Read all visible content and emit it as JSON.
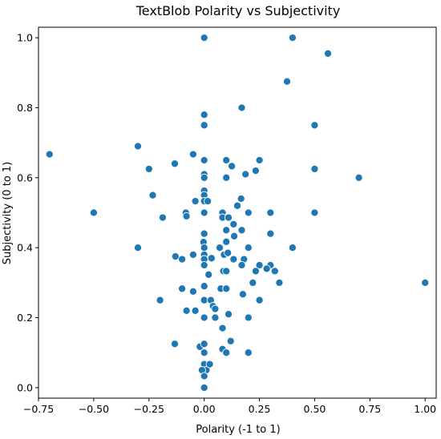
{
  "chart_data": {
    "type": "scatter",
    "title": "TextBlob Polarity vs Subjectivity",
    "xlabel": "Polarity (-1 to 1)",
    "ylabel": "Subjectivity (0 to 1)",
    "xlim": [
      -0.75,
      1.05
    ],
    "ylim": [
      -0.03,
      1.03
    ],
    "xticks": [
      -0.75,
      -0.5,
      -0.25,
      0.0,
      0.25,
      0.5,
      0.75,
      1.0
    ],
    "xtick_labels": [
      "−0.75",
      "−0.50",
      "−0.25",
      "0.00",
      "0.25",
      "0.50",
      "0.75",
      "1.00"
    ],
    "yticks": [
      0.0,
      0.2,
      0.4,
      0.6,
      0.8,
      1.0
    ],
    "ytick_labels": [
      "0.0",
      "0.2",
      "0.4",
      "0.6",
      "0.8",
      "1.0"
    ],
    "grid": false,
    "marker_color": "#1f77b4",
    "marker_edge_color": "#ffffff",
    "points": [
      [
        0.0,
        1.0
      ],
      [
        0.4,
        1.0
      ],
      [
        0.56,
        0.955
      ],
      [
        0.375,
        0.875
      ],
      [
        0.0,
        0.78
      ],
      [
        0.17,
        0.8
      ],
      [
        0.0,
        0.75
      ],
      [
        0.5,
        0.75
      ],
      [
        -0.7,
        0.667
      ],
      [
        -0.3,
        0.69
      ],
      [
        -0.25,
        0.625
      ],
      [
        -0.05,
        0.667
      ],
      [
        0.0,
        0.65
      ],
      [
        0.1,
        0.65
      ],
      [
        0.25,
        0.65
      ],
      [
        -0.133,
        0.64
      ],
      [
        0.125,
        0.633
      ],
      [
        0.0,
        0.61
      ],
      [
        0.187,
        0.61
      ],
      [
        0.233,
        0.62
      ],
      [
        0.5,
        0.625
      ],
      [
        0.7,
        0.6
      ],
      [
        0.1,
        0.6
      ],
      [
        0.0,
        0.6
      ],
      [
        -0.233,
        0.55
      ],
      [
        0.0,
        0.563
      ],
      [
        0.0,
        0.55
      ],
      [
        -0.04,
        0.533
      ],
      [
        0.0,
        0.533
      ],
      [
        0.016,
        0.533
      ],
      [
        0.167,
        0.54
      ],
      [
        0.15,
        0.52
      ],
      [
        -0.5,
        0.5
      ],
      [
        -0.083,
        0.5
      ],
      [
        -0.08,
        0.49
      ],
      [
        0.0,
        0.5
      ],
      [
        0.083,
        0.5
      ],
      [
        0.2,
        0.5
      ],
      [
        0.3,
        0.5
      ],
      [
        0.5,
        0.5
      ],
      [
        -0.188,
        0.486
      ],
      [
        0.083,
        0.486
      ],
      [
        0.11,
        0.486
      ],
      [
        0.133,
        0.467
      ],
      [
        0.1,
        0.45
      ],
      [
        0.0,
        0.44
      ],
      [
        0.3,
        0.44
      ],
      [
        0.136,
        0.433
      ],
      [
        0.17,
        0.45
      ],
      [
        -0.003,
        0.416
      ],
      [
        0.1,
        0.417
      ],
      [
        0.0,
        0.4
      ],
      [
        -0.3,
        0.4
      ],
      [
        0.07,
        0.4
      ],
      [
        0.2,
        0.4
      ],
      [
        0.4,
        0.4
      ],
      [
        -0.05,
        0.38
      ],
      [
        0.0,
        0.38
      ],
      [
        0.09,
        0.38
      ],
      [
        -0.13,
        0.375
      ],
      [
        0.107,
        0.385
      ],
      [
        -0.1,
        0.367
      ],
      [
        0.0,
        0.367
      ],
      [
        0.033,
        0.37
      ],
      [
        0.133,
        0.367
      ],
      [
        0.18,
        0.367
      ],
      [
        0.0,
        0.35
      ],
      [
        0.17,
        0.35
      ],
      [
        0.25,
        0.35
      ],
      [
        0.3,
        0.35
      ],
      [
        0.283,
        0.34
      ],
      [
        0.32,
        0.333
      ],
      [
        0.087,
        0.333
      ],
      [
        0.233,
        0.333
      ],
      [
        0.02,
        0.323
      ],
      [
        0.1,
        0.333
      ],
      [
        0.34,
        0.3
      ],
      [
        1.0,
        0.3
      ],
      [
        0.0,
        0.29
      ],
      [
        0.075,
        0.283
      ],
      [
        0.1,
        0.283
      ],
      [
        0.22,
        0.3
      ],
      [
        -0.05,
        0.275
      ],
      [
        0.175,
        0.267
      ],
      [
        -0.2,
        0.25
      ],
      [
        0.0,
        0.25
      ],
      [
        0.03,
        0.25
      ],
      [
        0.25,
        0.25
      ],
      [
        -0.1,
        0.283
      ],
      [
        0.04,
        0.233
      ],
      [
        0.0,
        0.2
      ],
      [
        -0.08,
        0.22
      ],
      [
        -0.04,
        0.22
      ],
      [
        0.05,
        0.225
      ],
      [
        0.11,
        0.21
      ],
      [
        -0.133,
        0.125
      ],
      [
        0.0,
        0.2
      ],
      [
        0.05,
        0.2
      ],
      [
        0.2,
        0.2
      ],
      [
        0.083,
        0.17
      ],
      [
        -0.02,
        0.117
      ],
      [
        0.0,
        0.125
      ],
      [
        0.083,
        0.11
      ],
      [
        0.12,
        0.133
      ],
      [
        0.1,
        0.1
      ],
      [
        0.2,
        0.1
      ],
      [
        0.0,
        0.1
      ],
      [
        0.0,
        0.067
      ],
      [
        0.01,
        0.05
      ],
      [
        -0.01,
        0.05
      ],
      [
        0.0,
        0.033
      ],
      [
        0.025,
        0.067
      ],
      [
        0.0,
        0.0
      ]
    ]
  }
}
